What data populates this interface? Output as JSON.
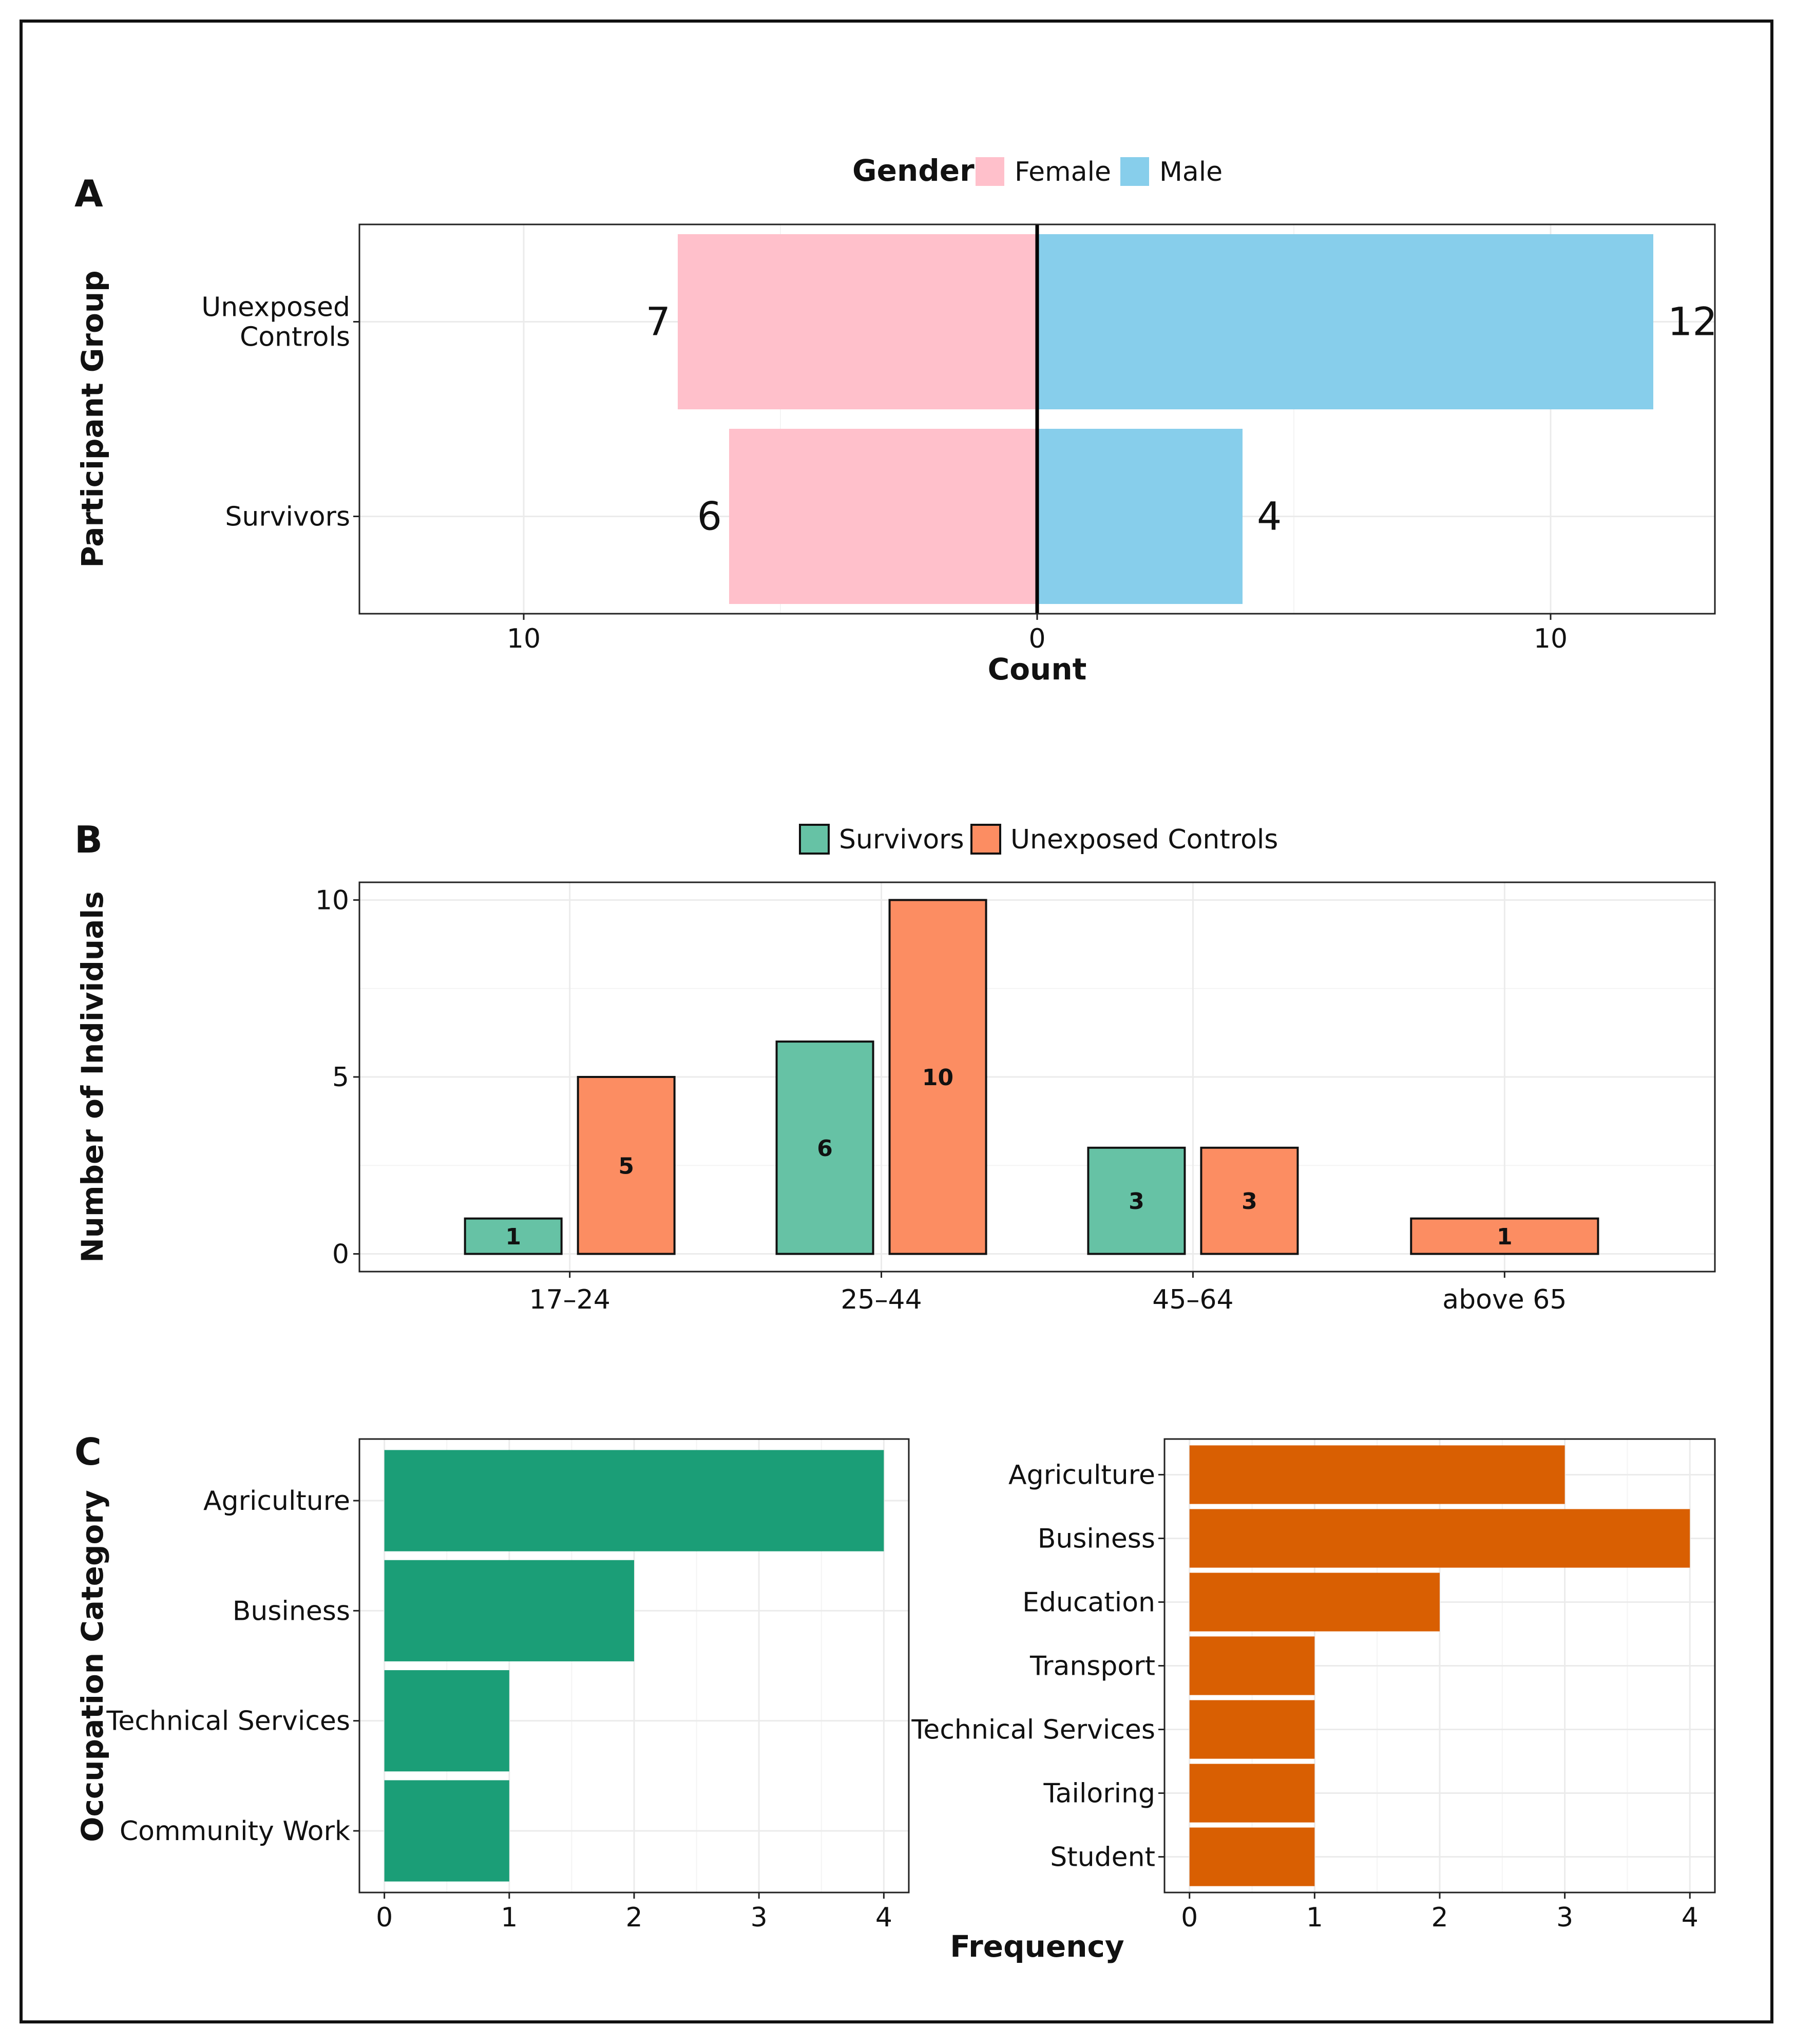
{
  "colors": {
    "female": "#ffc0cb",
    "male": "#87ceeb",
    "survivors": "#66c2a5",
    "controls": "#fc8d62",
    "occ_survivors": "#1b9e77",
    "occ_controls": "#d95f02",
    "grid": "#ebebeb",
    "axis": "#222222"
  },
  "chart_data": [
    {
      "panel": "A",
      "type": "bar",
      "orientation": "horizontal-diverging",
      "categories": [
        "Unexposed Controls",
        "Survivors"
      ],
      "category_labels": [
        [
          "Unexposed",
          "Controls"
        ],
        [
          "Survivors"
        ]
      ],
      "series": [
        {
          "name": "Female",
          "values": [
            7,
            6
          ]
        },
        {
          "name": "Male",
          "values": [
            12,
            4
          ]
        }
      ],
      "legend_title": "Gender",
      "legend_position": "top",
      "xlabel": "Count",
      "ylabel": "Participant Group",
      "xlim": [
        -13.2,
        13.2
      ],
      "xticks": [
        -10,
        0,
        10
      ],
      "xtick_labels": [
        "10",
        "0",
        "10"
      ]
    },
    {
      "panel": "B",
      "type": "bar",
      "categories": [
        "17–24",
        "25–44",
        "45–64",
        "above 65"
      ],
      "series": [
        {
          "name": "Survivors",
          "values": [
            1,
            6,
            3,
            null
          ]
        },
        {
          "name": "Unexposed Controls",
          "values": [
            5,
            10,
            3,
            1
          ]
        }
      ],
      "legend_position": "top",
      "xlabel": "",
      "ylabel": "Number of Individuals",
      "ylim": [
        -0.5,
        10.5
      ],
      "yticks": [
        0,
        5,
        10
      ]
    },
    {
      "panel": "C",
      "group": "Survivors",
      "type": "bar",
      "orientation": "horizontal",
      "categories": [
        "Agriculture",
        "Business",
        "Technical Services",
        "Community Work"
      ],
      "values": [
        4,
        2,
        1,
        1
      ],
      "ylabel": "Occupation Category",
      "xlim": [
        -0.2,
        4.2
      ],
      "xticks": [
        0,
        1,
        2,
        3,
        4
      ]
    },
    {
      "panel": "C",
      "group": "Unexposed Controls",
      "type": "bar",
      "orientation": "horizontal",
      "categories": [
        "Agriculture",
        "Business",
        "Education",
        "Transport",
        "Technical Services",
        "Tailoring",
        "Student"
      ],
      "values": [
        3,
        4,
        2,
        1,
        1,
        1,
        1
      ],
      "xlabel": "Frequency",
      "xlim": [
        -0.2,
        4.2
      ],
      "xticks": [
        0,
        1,
        2,
        3,
        4
      ]
    }
  ]
}
